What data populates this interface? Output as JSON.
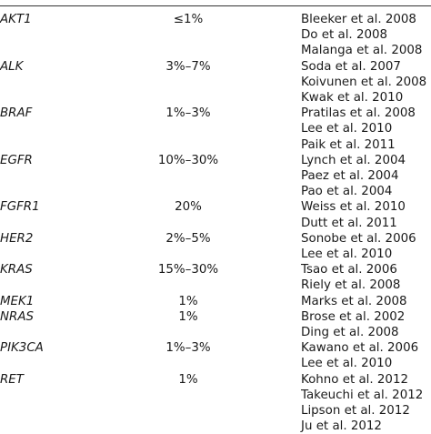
{
  "table": {
    "rows": [
      {
        "gene": "AKT1",
        "frequency": "≤1%",
        "reference": "Bleeker et al. 2008"
      },
      {
        "gene": "",
        "frequency": "",
        "reference": "Do et al. 2008"
      },
      {
        "gene": "",
        "frequency": "",
        "reference": "Malanga et al. 2008"
      },
      {
        "gene": "ALK",
        "frequency": "3%–7%",
        "reference": "Soda et al. 2007"
      },
      {
        "gene": "",
        "frequency": "",
        "reference": "Koivunen et al. 2008"
      },
      {
        "gene": "",
        "frequency": "",
        "reference": "Kwak et al. 2010"
      },
      {
        "gene": "BRAF",
        "frequency": "1%–3%",
        "reference": "Pratilas et al. 2008"
      },
      {
        "gene": "",
        "frequency": "",
        "reference": "Lee et al. 2010"
      },
      {
        "gene": "",
        "frequency": "",
        "reference": "Paik et al. 2011"
      },
      {
        "gene": "EGFR",
        "frequency": "10%–30%",
        "reference": "Lynch et al. 2004"
      },
      {
        "gene": "",
        "frequency": "",
        "reference": "Paez et al. 2004"
      },
      {
        "gene": "",
        "frequency": "",
        "reference": "Pao et al. 2004"
      },
      {
        "gene": "FGFR1",
        "frequency": "20%",
        "reference": "Weiss et al. 2010"
      },
      {
        "gene": "",
        "frequency": "",
        "reference": "Dutt et al. 2011"
      },
      {
        "gene": "HER2",
        "frequency": "2%–5%",
        "reference": "Sonobe et al. 2006"
      },
      {
        "gene": "",
        "frequency": "",
        "reference": "Lee et al. 2010"
      },
      {
        "gene": "KRAS",
        "frequency": "15%–30%",
        "reference": "Tsao et al. 2006"
      },
      {
        "gene": "",
        "frequency": "",
        "reference": "Riely et al. 2008"
      },
      {
        "gene": "MEK1",
        "frequency": "1%",
        "reference": "Marks et al. 2008"
      },
      {
        "gene": "NRAS",
        "frequency": "1%",
        "reference": "Brose et al. 2002"
      },
      {
        "gene": "",
        "frequency": "",
        "reference": "Ding et al. 2008"
      },
      {
        "gene": "PIK3CA",
        "frequency": "1%–3%",
        "reference": "Kawano et al. 2006"
      },
      {
        "gene": "",
        "frequency": "",
        "reference": "Lee et al. 2010"
      },
      {
        "gene": "RET",
        "frequency": "1%",
        "reference": "Kohno et al. 2012"
      },
      {
        "gene": "",
        "frequency": "",
        "reference": "Takeuchi et al. 2012"
      },
      {
        "gene": "",
        "frequency": "",
        "reference": "Lipson et al. 2012"
      },
      {
        "gene": "",
        "frequency": "",
        "reference": "Ju et al. 2012"
      }
    ]
  }
}
